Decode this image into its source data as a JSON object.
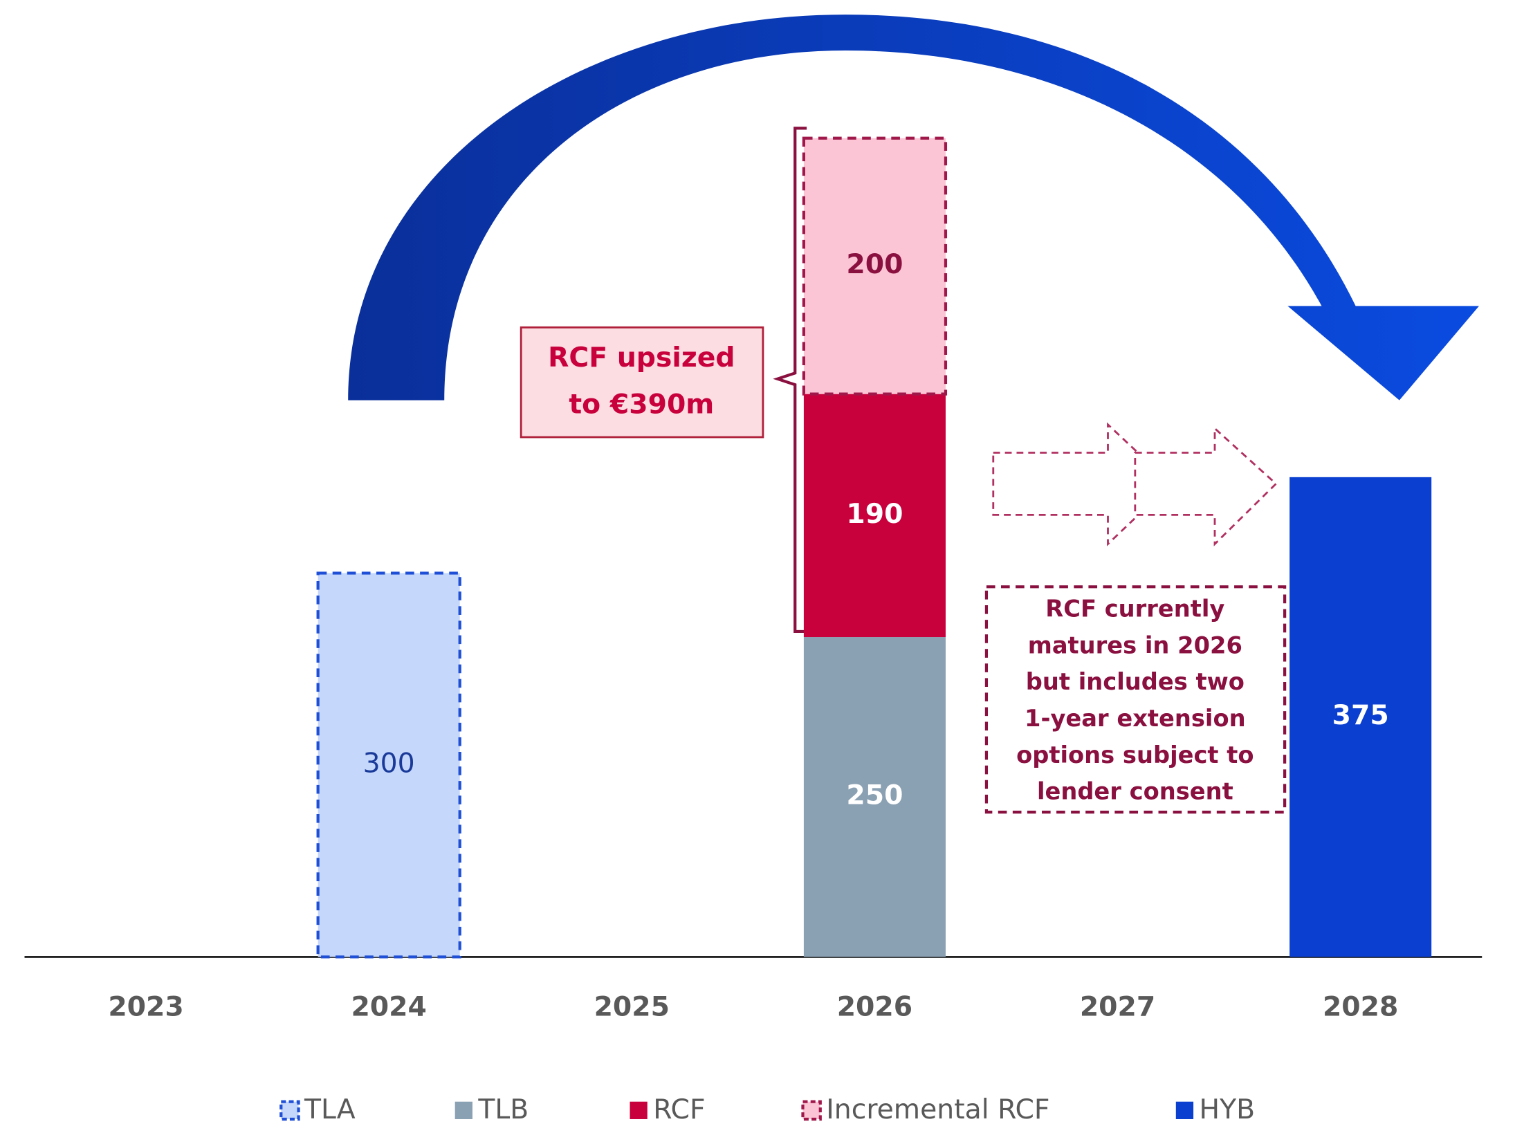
{
  "chart_data": {
    "type": "stacked_bar",
    "categories": [
      "2023",
      "2024",
      "2025",
      "2026",
      "2027",
      "2028"
    ],
    "series": [
      {
        "name": "TLA",
        "color": "#c5d7fb",
        "border": "#1f4fd6",
        "dashed": true,
        "label_color": "#1a3a9a",
        "values": [
          null,
          300,
          null,
          null,
          null,
          null
        ]
      },
      {
        "name": "TLB",
        "color": "#8aa0b3",
        "label_color": "#ffffff",
        "values": [
          null,
          null,
          null,
          250,
          null,
          null
        ]
      },
      {
        "name": "RCF",
        "color": "#c8003c",
        "label_color": "#ffffff",
        "values": [
          null,
          null,
          null,
          190,
          null,
          null
        ]
      },
      {
        "name": "Incremental RCF",
        "color": "#fbc5d5",
        "border": "#a0184a",
        "dashed": true,
        "label_color": "#8a1040",
        "values": [
          null,
          null,
          null,
          200,
          null,
          null
        ]
      },
      {
        "name": "HYB",
        "color": "#0a3fd0",
        "label_color": "#ffffff",
        "values": [
          null,
          null,
          null,
          null,
          null,
          375
        ]
      }
    ],
    "ylim": [
      0,
      748
    ],
    "annotations": [
      [
        "RCF upsized",
        "to €390m"
      ],
      [
        "RCF currently",
        "matures in 2026",
        "but includes two",
        "1-year extension",
        "options subject to",
        "lender consent"
      ]
    ]
  }
}
